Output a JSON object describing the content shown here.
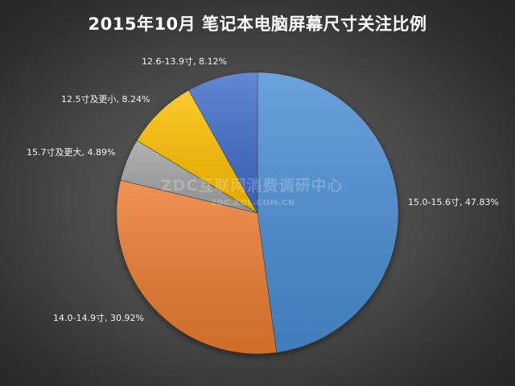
{
  "chart_data": {
    "type": "pie",
    "title": "2015年10月  笔记本电脑屏幕尺寸关注比例",
    "slices": [
      {
        "label": "15.0-15.6寸",
        "value": 47.83,
        "display": "15.0-15.6寸, 47.83%",
        "color": "#4a8ed6"
      },
      {
        "label": "14.0-14.9寸",
        "value": 30.92,
        "display": "14.0-14.9寸, 30.92%",
        "color": "#ec7c30"
      },
      {
        "label": "15.7寸及更大",
        "value": 4.89,
        "display": "15.7寸及更大, 4.89%",
        "color": "#a5a5a5"
      },
      {
        "label": "12.5寸及更小",
        "value": 8.24,
        "display": "12.5寸及更小, 8.24%",
        "color": "#ffc000"
      },
      {
        "label": "12.6-13.9寸",
        "value": 8.12,
        "display": "12.6-13.9寸, 8.12%",
        "color": "#3f6ec9"
      }
    ],
    "start": "12 o'clock",
    "direction": "clockwise",
    "legend": "none"
  },
  "watermark": {
    "main": "ZDC互联网消费调研中心",
    "sub": "ZDC.ZOL.COM.CN"
  }
}
